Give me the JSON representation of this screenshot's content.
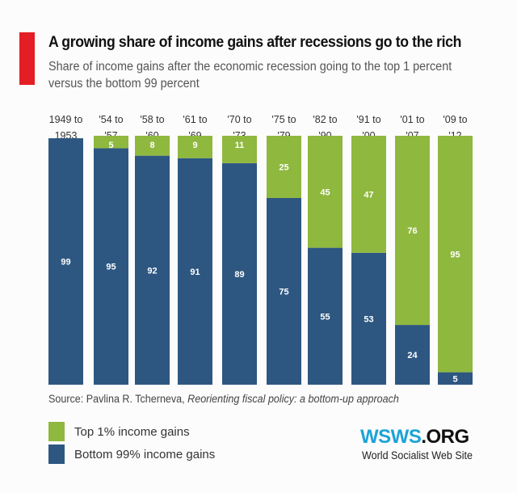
{
  "title": "A growing share of income gains after recessions go to the rich",
  "subtitle": "Share of income gains after the economic recession going to the top 1 percent versus the bottom 99 percent",
  "source_prefix": "Source: Pavlina R. Tcherneva, ",
  "source_title": "Reorienting fiscal policy: a bottom-up approach",
  "logo": {
    "part1": "WSWS",
    "part2": ".ORG",
    "tagline": "World Socialist Web Site"
  },
  "colors": {
    "top": "#8fb83e",
    "bottom": "#2d5781",
    "accent": "#e31e24",
    "logo": "#1ba3d6"
  },
  "chart_data": {
    "type": "bar",
    "stacked": true,
    "categories": [
      [
        "1949 to",
        "1953"
      ],
      [
        "'54 to",
        "'57"
      ],
      [
        "'58 to",
        "'60"
      ],
      [
        "'61 to",
        "'69"
      ],
      [
        "'70 to",
        "'73"
      ],
      [
        "'75 to",
        "'79"
      ],
      [
        "'82 to",
        "'90"
      ],
      [
        "'91 to",
        "'00"
      ],
      [
        "'01 to",
        "'07"
      ],
      [
        "'09 to",
        "'12"
      ]
    ],
    "series": [
      {
        "name": "Bottom 99% income gains",
        "color": "#2d5781",
        "values": [
          99,
          95,
          92,
          91,
          89,
          75,
          55,
          53,
          24,
          5
        ]
      },
      {
        "name": "Top 1% income gains",
        "color": "#8fb83e",
        "values": [
          null,
          5,
          8,
          9,
          11,
          25,
          45,
          47,
          76,
          95
        ]
      }
    ],
    "ylim": [
      0,
      100
    ],
    "grid": false,
    "legend": "bottom-left"
  }
}
